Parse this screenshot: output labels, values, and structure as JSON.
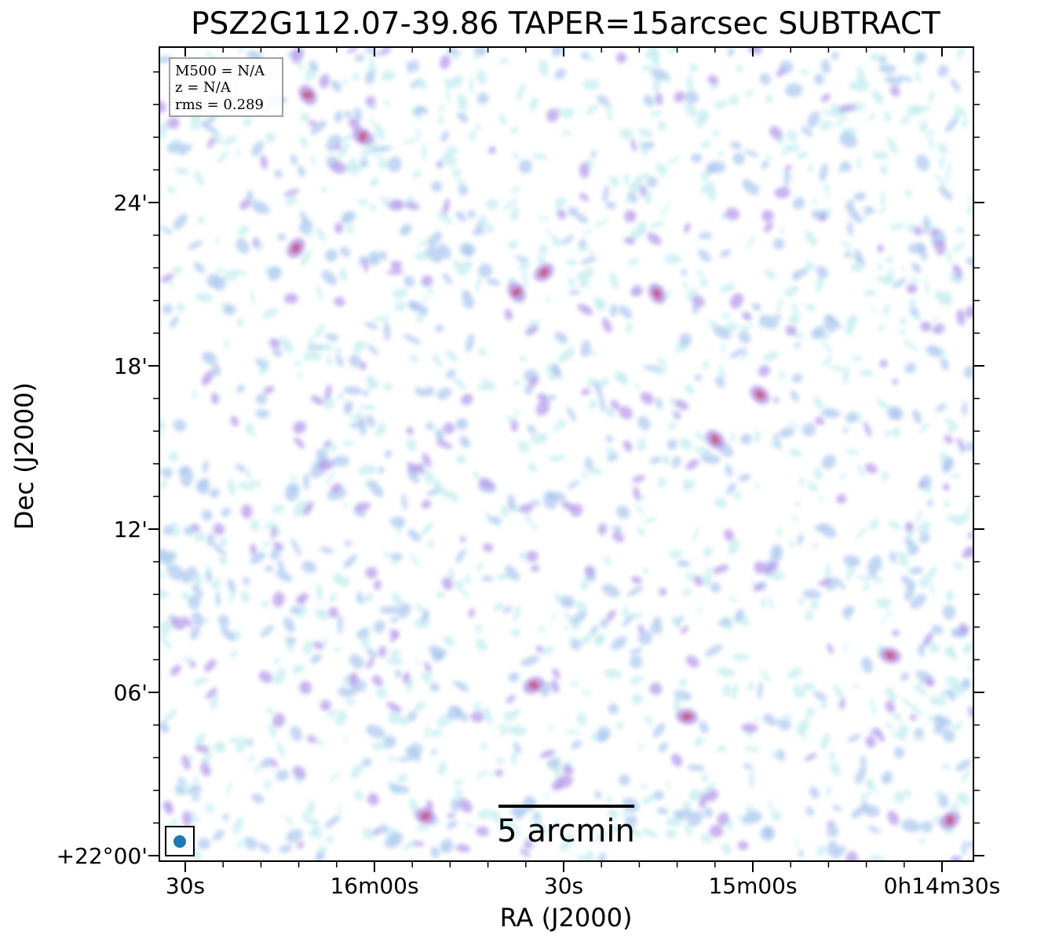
{
  "title": "PSZ2G112.07-39.86 TAPER=15arcsec SUBTRACT",
  "axes": {
    "xlabel": "RA (J2000)",
    "ylabel": "Dec (J2000)",
    "x_ticks": [
      "30s",
      "16m00s",
      "30s",
      "15m00s",
      "0h14m30s"
    ],
    "y_ticks": [
      "24'",
      "18'",
      "12'",
      "06'",
      "+22°00'"
    ]
  },
  "info_box": {
    "lines": [
      "M500 = N/A",
      "z = N/A",
      "rms = 0.289"
    ]
  },
  "scalebar": {
    "label": "5 arcmin"
  },
  "colors": {
    "noise_light": "#c6ecef",
    "noise_blue": "#a9c6ee",
    "noise_purple": "#b79be9",
    "peak_red": "#c8426a",
    "beam": "#1f77b4",
    "frame": "#000000"
  },
  "image": {
    "description_kind": "radio continuum map with noise speckles",
    "beam_marker": "beam-ellipse"
  }
}
